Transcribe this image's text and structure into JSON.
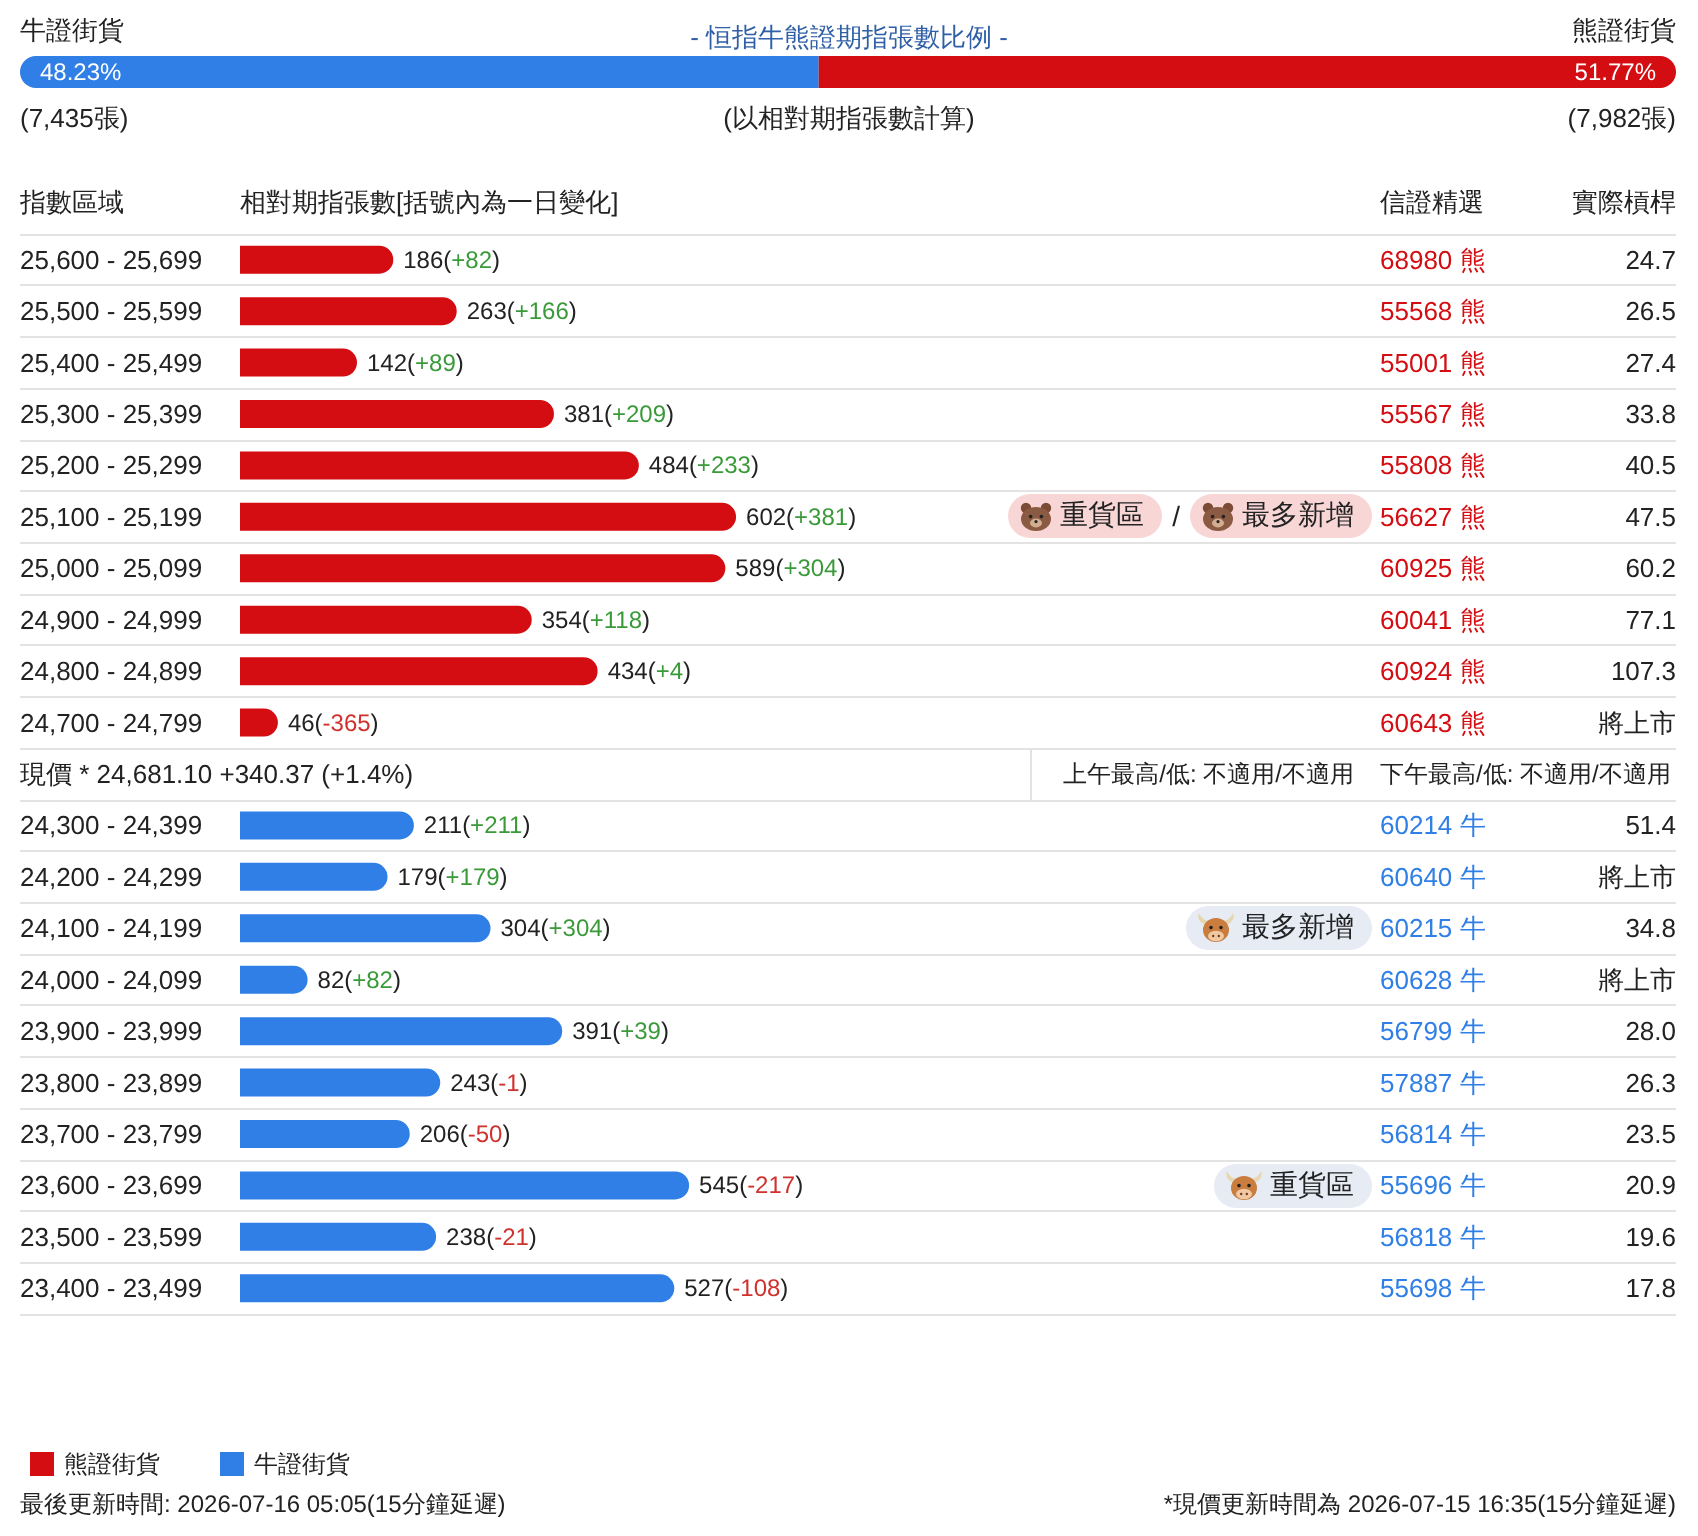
{
  "chart_data": [
    {
      "type": "bar",
      "orientation": "horizontal",
      "stacked": true,
      "title": "- 恒指牛熊證期指張數比例 -",
      "subtitle": "(以相對期指張數計算)",
      "categories": [
        null
      ],
      "series": [
        {
          "name": "牛證街貨",
          "color": "#2f7fe6",
          "values": [
            48.23
          ],
          "value_labels": [
            "48.23%"
          ]
        },
        {
          "name": "熊證街貨",
          "color": "#d40d12",
          "values": [
            51.77
          ],
          "value_labels": [
            "51.77%"
          ]
        }
      ],
      "xlim": [
        0,
        100
      ],
      "tick_labels": false,
      "annotations": [
        "(7,435張)",
        "(7,982張)"
      ]
    },
    {
      "type": "bar",
      "orientation": "horizontal",
      "xlabel": "相對期指張數[括號內為一日變化]",
      "ylabel": "指數區域",
      "y2label": "信證精選",
      "categories": [
        "25,600 - 25,699",
        "25,500 - 25,599",
        "25,400 - 25,499",
        "25,300 - 25,399",
        "25,200 - 25,299",
        "25,100 - 25,199",
        "25,000 - 25,099",
        "24,900 - 24,999",
        "24,800 - 24,899",
        "24,700 - 24,799",
        null,
        "24,300 - 24,399",
        "24,200 - 24,299",
        "24,100 - 24,199",
        "24,000 - 24,099",
        "23,900 - 23,999",
        "23,800 - 23,899",
        "23,700 - 23,799",
        "23,600 - 23,699",
        "23,500 - 23,599",
        "23,400 - 23,499"
      ],
      "y2_categories": [
        "68980 熊",
        "55568 熊",
        "55001 熊",
        "55567 熊",
        "55808 熊",
        "56627 熊",
        "60925 熊",
        "60041 熊",
        "60924 熊",
        "60643 熊",
        null,
        "60214 牛",
        "60640 牛",
        "60215 牛",
        "60628 牛",
        "56799 牛",
        "57887 牛",
        "56814 牛",
        "55696 牛",
        "56818 牛",
        "55698 牛"
      ],
      "series": [
        {
          "name": "熊證街貨",
          "color": "#d40d12",
          "values": [
            186,
            263,
            142,
            381,
            484,
            602,
            589,
            354,
            434,
            46,
            null,
            null,
            null,
            null,
            null,
            null,
            null,
            null,
            null,
            null,
            null
          ],
          "value_labels": [
            "186(+82)",
            "263(+166)",
            "142(+89)",
            "381(+209)",
            "484(+233)",
            "602(+381)",
            "589(+304)",
            "354(+118)",
            "434(+4)",
            "46(-365)",
            null,
            null,
            null,
            null,
            null,
            null,
            null,
            null,
            null,
            null,
            null
          ]
        },
        {
          "name": "牛證街貨",
          "color": "#2f7fe6",
          "values": [
            null,
            null,
            null,
            null,
            null,
            null,
            null,
            null,
            null,
            null,
            null,
            211,
            179,
            304,
            82,
            391,
            243,
            206,
            545,
            238,
            527
          ],
          "value_labels": [
            null,
            null,
            null,
            null,
            null,
            null,
            null,
            null,
            null,
            null,
            null,
            "211(+211)",
            "179(+179)",
            "304(+304)",
            "82(+82)",
            "391(+39)",
            "243(-1)",
            "206(-50)",
            "545(-217)",
            "238(-21)",
            "527(-108)"
          ]
        }
      ],
      "grid": "y",
      "legend": "bottom left",
      "tick_labels": "y",
      "annotations": [
        "實際槓桿",
        "現價 * 24,681.10",
        "+340.37 (+1.4%)",
        "上午最高/低: 不適用/不適用",
        "下午最高/低: 不適用/不適用",
        "最後更新時間: 2026-07-16 05:05(15分鐘延遲)",
        "*現價更新時間為 2026-07-15 16:35(15分鐘延遲)",
        "/",
        "24.7",
        "26.5",
        "27.4",
        "33.8",
        "40.5",
        "47.5",
        "60.2",
        "77.1",
        "107.3",
        "將上市",
        "51.4",
        "將上市",
        "34.8",
        "將上市",
        "28.0",
        "26.3",
        "23.5",
        "20.9",
        "19.6",
        "17.8",
        "重貨區",
        "最多新增",
        "重貨區",
        "最多新增"
      ]
    }
  ]
}
